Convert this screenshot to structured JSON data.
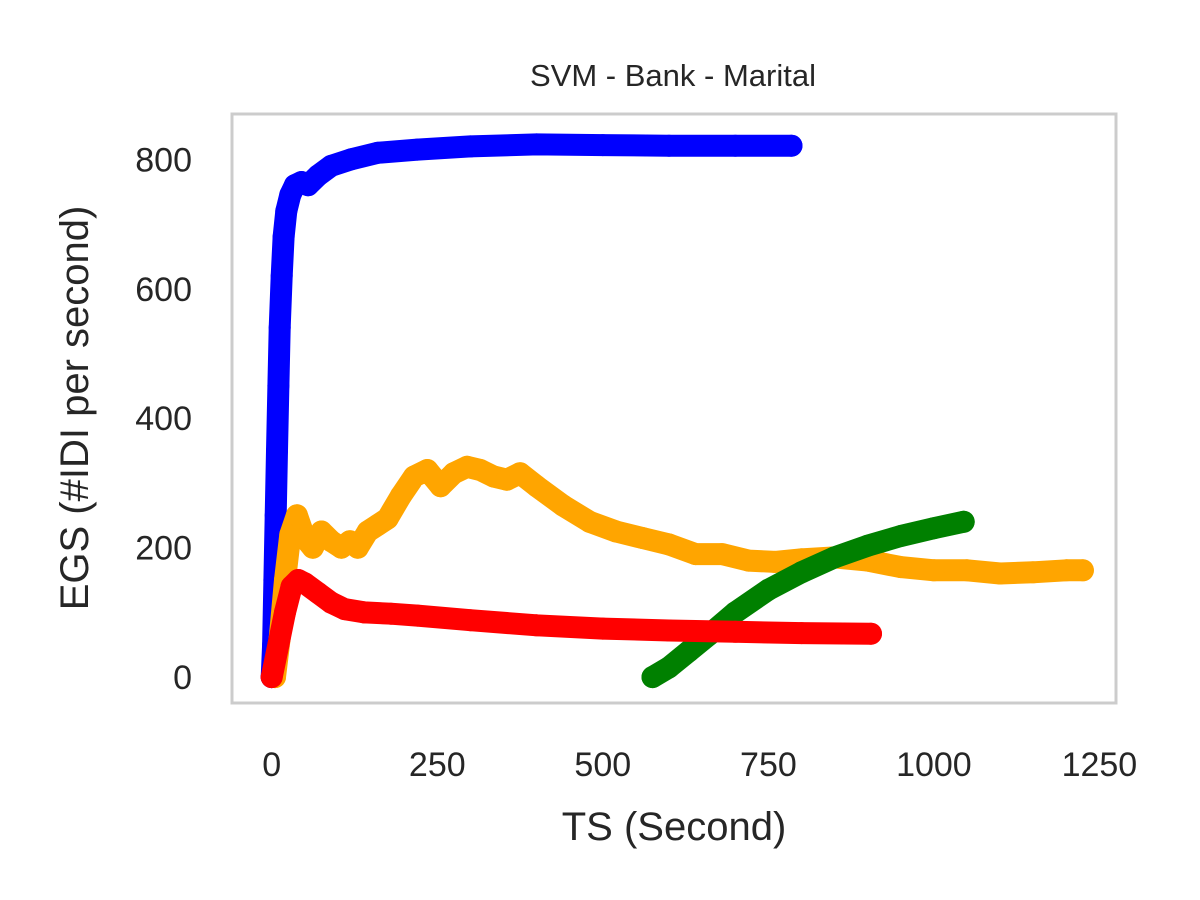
{
  "chart_data": {
    "type": "line",
    "title": "SVM - Bank - Marital",
    "xlabel": "TS (Second)",
    "ylabel": "EGS (#IDI  per second)",
    "xlim": [
      -60,
      1275
    ],
    "ylim": [
      -40,
      870
    ],
    "xticks": [
      0,
      250,
      500,
      750,
      1000,
      1250
    ],
    "yticks": [
      0,
      200,
      400,
      600,
      800
    ],
    "grid": false,
    "legend": "none",
    "frame_color": "#cccccc",
    "series": [
      {
        "color": "#0000ff",
        "x": [
          0,
          2,
          4,
          6,
          8,
          10,
          12,
          15,
          18,
          22,
          28,
          35,
          45,
          55,
          70,
          90,
          120,
          160,
          220,
          300,
          400,
          500,
          600,
          700,
          785
        ],
        "y": [
          0,
          50,
          150,
          250,
          350,
          450,
          540,
          620,
          680,
          720,
          745,
          760,
          765,
          760,
          775,
          790,
          800,
          810,
          815,
          820,
          823,
          822,
          821,
          821,
          821
        ]
      },
      {
        "color": "#ffa500",
        "x": [
          5,
          12,
          20,
          28,
          38,
          50,
          62,
          75,
          90,
          105,
          118,
          130,
          145,
          160,
          175,
          195,
          215,
          235,
          255,
          275,
          295,
          315,
          335,
          355,
          375,
          400,
          440,
          480,
          520,
          560,
          600,
          640,
          680,
          720,
          760,
          800,
          850,
          900,
          950,
          1000,
          1050,
          1100,
          1150,
          1200,
          1225
        ],
        "y": [
          0,
          60,
          150,
          220,
          250,
          215,
          200,
          225,
          210,
          200,
          210,
          200,
          225,
          235,
          245,
          280,
          310,
          320,
          295,
          315,
          325,
          320,
          310,
          305,
          315,
          295,
          265,
          240,
          225,
          215,
          205,
          190,
          190,
          180,
          178,
          182,
          185,
          180,
          170,
          165,
          165,
          160,
          162,
          165,
          165
        ]
      },
      {
        "color": "#008000",
        "x": [
          575,
          600,
          630,
          660,
          700,
          750,
          800,
          850,
          900,
          950,
          1000,
          1045
        ],
        "y": [
          0,
          15,
          40,
          65,
          100,
          135,
          162,
          185,
          203,
          218,
          230,
          240
        ]
      },
      {
        "color": "#ff0000",
        "x": [
          0,
          10,
          20,
          30,
          40,
          50,
          70,
          90,
          110,
          140,
          180,
          220,
          300,
          400,
          500,
          600,
          700,
          800,
          905
        ],
        "y": [
          0,
          50,
          100,
          140,
          150,
          145,
          130,
          115,
          105,
          100,
          98,
          95,
          88,
          80,
          75,
          72,
          70,
          68,
          67
        ]
      }
    ]
  }
}
